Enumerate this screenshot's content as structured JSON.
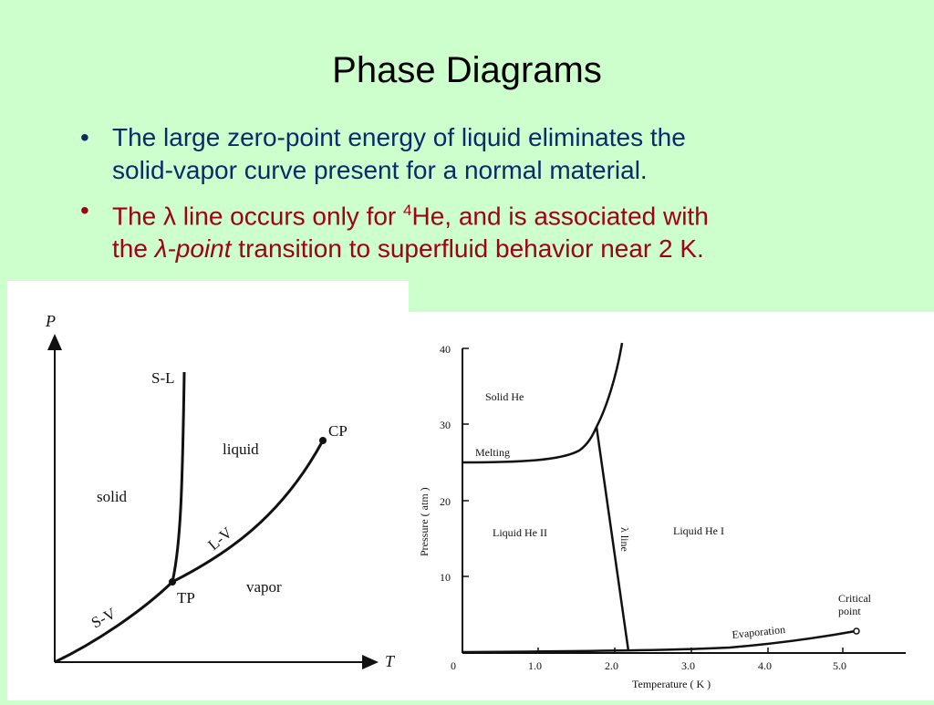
{
  "slide": {
    "title": "Phase Diagrams",
    "bullet1": {
      "line1": "The large zero-point energy of liquid eliminates the",
      "line2": "solid-vapor curve present for a normal material."
    },
    "bullet2": {
      "line1_pre": "The λ line occurs only for ",
      "line1_sup": "4",
      "line1_post": "He, and is associated with",
      "line2_pre": "the ",
      "line2_em": "λ-point",
      "line2_post": " transition to superfluid behavior near 2 K."
    },
    "bullet_glyph": "•"
  },
  "left_diagram": {
    "axis_y_label": "P",
    "axis_x_label": "T",
    "labels": {
      "sl": "S-L",
      "cp": "CP",
      "liquid": "liquid",
      "solid": "solid",
      "lv": "L-V",
      "vapor": "vapor",
      "tp": "TP",
      "sv": "S-V"
    }
  },
  "right_diagram": {
    "ylabel": "Pressure ( atm )",
    "xlabel": "Temperature ( K )",
    "y_ticks": [
      "40",
      "30",
      "20",
      "10",
      "0"
    ],
    "x_ticks": [
      "1.0",
      "2.0",
      "3.0",
      "4.0",
      "5.0"
    ],
    "labels": {
      "solid": "Solid He",
      "melting": "Melting",
      "he2": "Liquid He II",
      "he1": "Liquid He I",
      "lambda": "λ line",
      "critical1": "Critical",
      "critical2": "point",
      "evaporation": "Evaporation"
    }
  }
}
